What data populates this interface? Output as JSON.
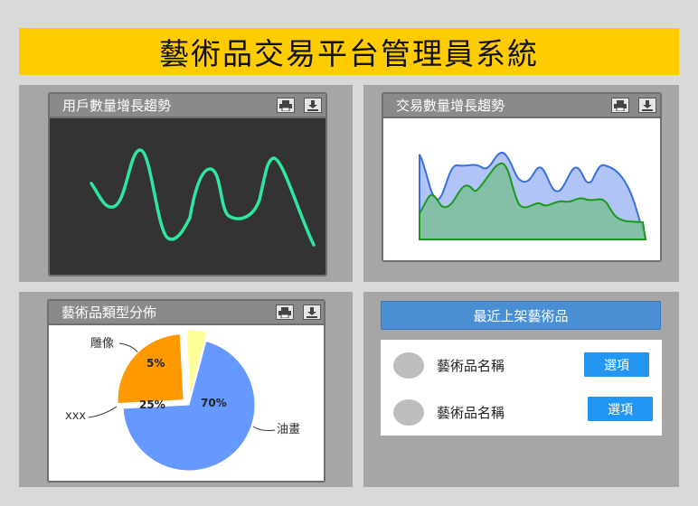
{
  "header": {
    "title": "藝術品交易平台管理員系統"
  },
  "user_growth": {
    "title": "用戶數量增長趨勢",
    "line_color": "#2ee8a0",
    "background": "#333333"
  },
  "trade_growth": {
    "title": "交易數量增長趨勢",
    "series": [
      {
        "color": "#3a6fe0",
        "fill": "#b0c4f5"
      },
      {
        "color": "#1a9a1a",
        "fill": "#7fbfa0"
      }
    ]
  },
  "category_dist": {
    "title": "藝術品類型分佈",
    "slices": [
      {
        "name": "油畫",
        "percent": 70,
        "label": "70%",
        "color": "#6699ff"
      },
      {
        "name": "xxx",
        "percent": 25,
        "label": "25%",
        "color": "#ff9900"
      },
      {
        "name": "雕像",
        "percent": 5,
        "label": "5%",
        "color": "#ffff99"
      }
    ]
  },
  "recent": {
    "title": "最近上架藝術品",
    "items": [
      {
        "name": "藝術品名稱",
        "button": "選項"
      },
      {
        "name": "藝術品名稱",
        "button": "選項"
      }
    ]
  },
  "toolbar_icons": [
    "printer-icon",
    "download-icon"
  ]
}
